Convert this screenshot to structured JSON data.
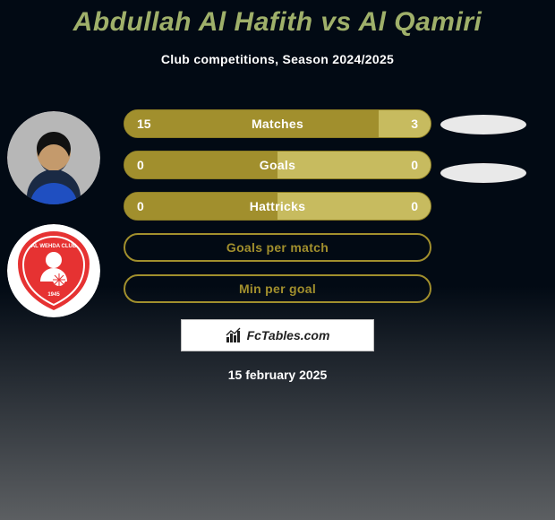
{
  "colors": {
    "bg_top": "#020a14",
    "bg_bottom": "#5c5f62",
    "title": "#9fb06a",
    "text": "#ffffff",
    "bar_left": "#a18f2d",
    "bar_right": "#c7bb5f",
    "bar_border": "#8c7d24",
    "bar_outline_only": "#a18f2d",
    "ellipse": "#e9e9e9",
    "watermark_bg": "#ffffff",
    "watermark_border": "#bdbdbd",
    "watermark_text": "#222222",
    "avatar1_bg": "#b7b7b7",
    "avatar2_bg": "#ffffff",
    "avatar2_badge": "#e63232"
  },
  "title": "Abdullah Al Hafith vs Al Qamiri",
  "subtitle": "Club competitions, Season 2024/2025",
  "date": "15 february 2025",
  "watermark": "FcTables.com",
  "rows": [
    {
      "label": "Matches",
      "type": "split",
      "left_val": "15",
      "right_val": "3",
      "left_pct": 83,
      "right_pct": 17
    },
    {
      "label": "Goals",
      "type": "split",
      "left_val": "0",
      "right_val": "0",
      "left_pct": 50,
      "right_pct": 50
    },
    {
      "label": "Hattricks",
      "type": "split",
      "left_val": "0",
      "right_val": "0",
      "left_pct": 50,
      "right_pct": 50
    },
    {
      "label": "Goals per match",
      "type": "outline"
    },
    {
      "label": "Min per goal",
      "type": "outline"
    }
  ]
}
